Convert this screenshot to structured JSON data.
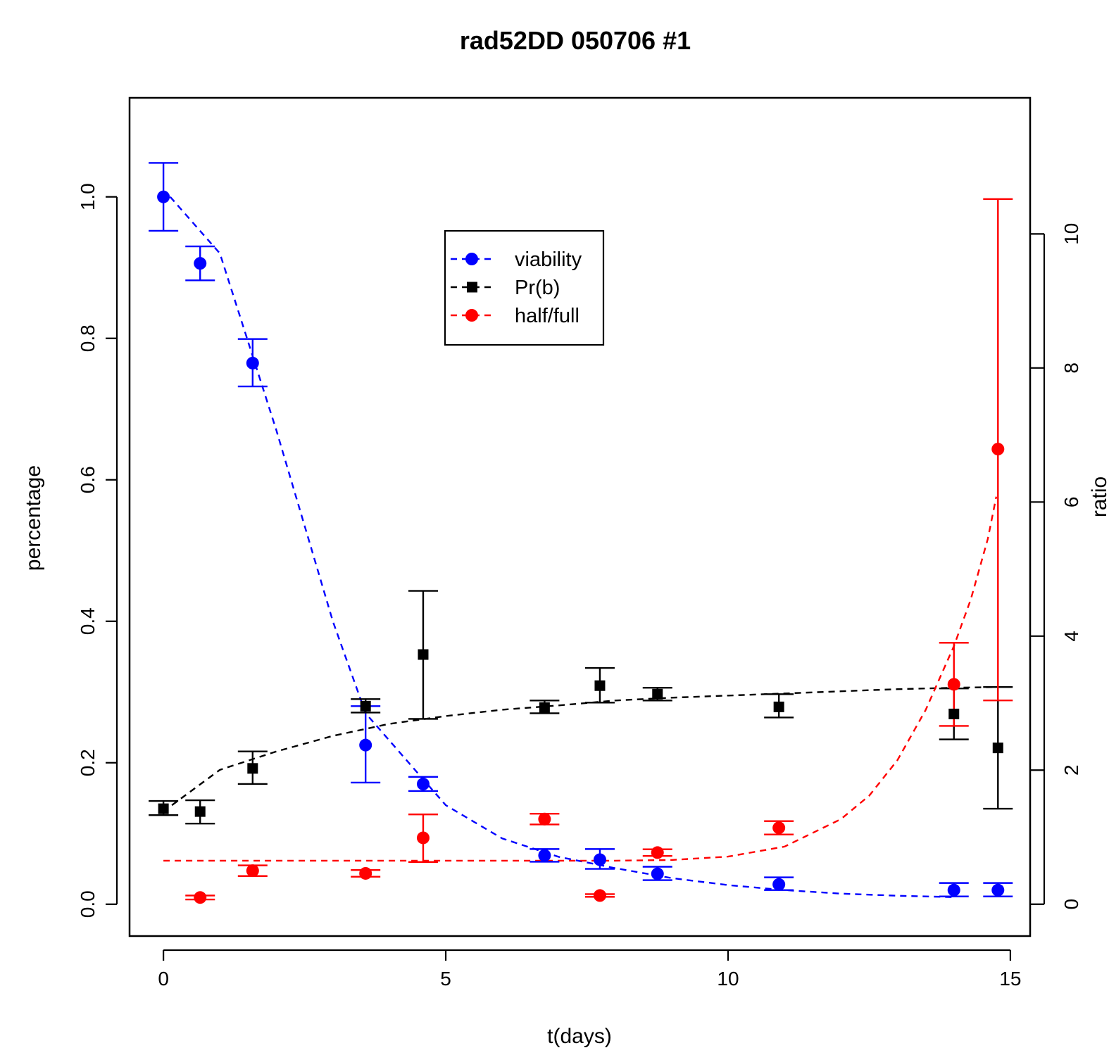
{
  "chart_data": {
    "type": "scatter",
    "title": "rad52DD 050706 #1",
    "xlabel": "t(days)",
    "ylabel_left": "percentage",
    "ylabel_right": "ratio",
    "xlim": [
      -0.6,
      15.35
    ],
    "ylim_left": [
      -0.045,
      1.14
    ],
    "ylim_right": [
      -0.475,
      12.03
    ],
    "x_ticks": [
      0,
      5,
      10,
      15
    ],
    "x_tick_labels": [
      "0",
      "5",
      "10",
      "15"
    ],
    "y_left_ticks": [
      0.0,
      0.2,
      0.4,
      0.6,
      0.8,
      1.0
    ],
    "y_left_tick_labels": [
      "0.0",
      "0.2",
      "0.4",
      "0.6",
      "0.8",
      "1.0"
    ],
    "y_right_ticks": [
      0,
      2,
      4,
      6,
      8,
      10
    ],
    "y_right_tick_labels": [
      "0",
      "2",
      "4",
      "6",
      "8",
      "10"
    ],
    "legend_position": "top-center",
    "series": [
      {
        "name": "viability",
        "axis": "left",
        "color": "#0000ff",
        "marker": "circle",
        "points": [
          {
            "x": 0.0,
            "y": 1.0,
            "lo": 0.952,
            "hi": 1.048
          },
          {
            "x": 0.65,
            "y": 0.906,
            "lo": 0.882,
            "hi": 0.93
          },
          {
            "x": 1.58,
            "y": 0.765,
            "lo": 0.732,
            "hi": 0.799
          },
          {
            "x": 3.58,
            "y": 0.225,
            "lo": 0.172,
            "hi": 0.28
          },
          {
            "x": 4.6,
            "y": 0.17,
            "lo": 0.16,
            "hi": 0.18
          },
          {
            "x": 6.75,
            "y": 0.069,
            "lo": 0.06,
            "hi": 0.078
          },
          {
            "x": 7.73,
            "y": 0.063,
            "lo": 0.05,
            "hi": 0.078
          },
          {
            "x": 8.75,
            "y": 0.043,
            "lo": 0.034,
            "hi": 0.053
          },
          {
            "x": 10.9,
            "y": 0.028,
            "lo": 0.02,
            "hi": 0.038
          },
          {
            "x": 14.0,
            "y": 0.02,
            "lo": 0.011,
            "hi": 0.03
          },
          {
            "x": 14.78,
            "y": 0.02,
            "lo": 0.011,
            "hi": 0.03
          }
        ],
        "fit_curve": [
          [
            0.12,
            1.0
          ],
          [
            1.0,
            0.92
          ],
          [
            2.0,
            0.67
          ],
          [
            3.0,
            0.4
          ],
          [
            3.58,
            0.27
          ],
          [
            5.0,
            0.14
          ],
          [
            6.0,
            0.093
          ],
          [
            7.0,
            0.067
          ],
          [
            8.0,
            0.051
          ],
          [
            9.0,
            0.037
          ],
          [
            10.0,
            0.027
          ],
          [
            11.0,
            0.02
          ],
          [
            12.0,
            0.015
          ],
          [
            13.0,
            0.012
          ],
          [
            14.0,
            0.01
          ]
        ]
      },
      {
        "name": "Pr(b)",
        "axis": "left",
        "color": "#000000",
        "marker": "square",
        "points": [
          {
            "x": 0.0,
            "y": 0.135,
            "lo": 0.126,
            "hi": 0.146
          },
          {
            "x": 0.65,
            "y": 0.131,
            "lo": 0.114,
            "hi": 0.147
          },
          {
            "x": 1.58,
            "y": 0.192,
            "lo": 0.17,
            "hi": 0.216
          },
          {
            "x": 3.58,
            "y": 0.28,
            "lo": 0.271,
            "hi": 0.29
          },
          {
            "x": 4.6,
            "y": 0.353,
            "lo": 0.262,
            "hi": 0.443
          },
          {
            "x": 6.75,
            "y": 0.278,
            "lo": 0.27,
            "hi": 0.288
          },
          {
            "x": 7.73,
            "y": 0.309,
            "lo": 0.285,
            "hi": 0.334
          },
          {
            "x": 8.75,
            "y": 0.297,
            "lo": 0.288,
            "hi": 0.306
          },
          {
            "x": 10.9,
            "y": 0.279,
            "lo": 0.264,
            "hi": 0.297
          },
          {
            "x": 14.0,
            "y": 0.269,
            "lo": 0.233,
            "hi": 0.305
          },
          {
            "x": 14.78,
            "y": 0.221,
            "lo": 0.135,
            "hi": 0.307
          }
        ],
        "fit_curve": [
          [
            0.15,
            0.14
          ],
          [
            1.0,
            0.19
          ],
          [
            2.0,
            0.216
          ],
          [
            3.0,
            0.238
          ],
          [
            4.0,
            0.255
          ],
          [
            5.0,
            0.266
          ],
          [
            6.0,
            0.275
          ],
          [
            7.0,
            0.281
          ],
          [
            8.0,
            0.288
          ],
          [
            9.0,
            0.292
          ],
          [
            10.0,
            0.295
          ],
          [
            11.0,
            0.298
          ],
          [
            12.0,
            0.301
          ],
          [
            13.0,
            0.304
          ],
          [
            14.0,
            0.306
          ],
          [
            14.75,
            0.307
          ]
        ]
      },
      {
        "name": "half/full",
        "axis": "right",
        "color": "#ff0000",
        "marker": "circle",
        "points": [
          {
            "x": 0.65,
            "y": 0.1,
            "lo": 0.07,
            "hi": 0.13
          },
          {
            "x": 1.58,
            "y": 0.5,
            "lo": 0.42,
            "hi": 0.58
          },
          {
            "x": 3.58,
            "y": 0.46,
            "lo": 0.41,
            "hi": 0.51
          },
          {
            "x": 4.6,
            "y": 0.99,
            "lo": 0.63,
            "hi": 1.34
          },
          {
            "x": 6.75,
            "y": 1.27,
            "lo": 1.19,
            "hi": 1.35
          },
          {
            "x": 7.73,
            "y": 0.13,
            "lo": 0.11,
            "hi": 0.15
          },
          {
            "x": 8.75,
            "y": 0.77,
            "lo": 0.72,
            "hi": 0.82
          },
          {
            "x": 10.9,
            "y": 1.14,
            "lo": 1.04,
            "hi": 1.24
          },
          {
            "x": 14.0,
            "y": 3.28,
            "lo": 2.66,
            "hi": 3.9
          },
          {
            "x": 14.78,
            "y": 6.79,
            "lo": 3.04,
            "hi": 10.52
          }
        ],
        "fit_curve": [
          [
            0.0,
            0.65
          ],
          [
            2.0,
            0.65
          ],
          [
            4.0,
            0.65
          ],
          [
            6.0,
            0.65
          ],
          [
            8.0,
            0.65
          ],
          [
            9.0,
            0.66
          ],
          [
            10.0,
            0.71
          ],
          [
            11.0,
            0.86
          ],
          [
            12.0,
            1.27
          ],
          [
            12.5,
            1.62
          ],
          [
            13.0,
            2.15
          ],
          [
            13.5,
            2.9
          ],
          [
            14.0,
            3.85
          ],
          [
            14.3,
            4.55
          ],
          [
            14.6,
            5.45
          ],
          [
            14.75,
            6.08
          ]
        ]
      }
    ]
  }
}
